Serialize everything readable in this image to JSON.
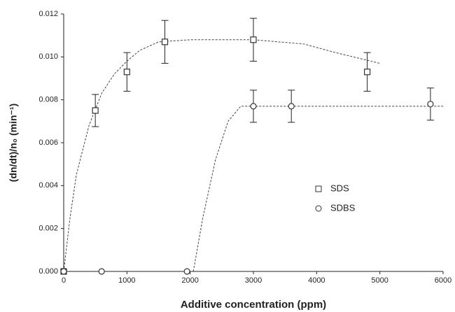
{
  "chart_data": {
    "type": "scatter",
    "xlabel": "Additive concentration (ppm)",
    "ylabel": "(dn/dt)/n₀ (min⁻¹)",
    "xlim": [
      0,
      6000
    ],
    "xticks": [
      0,
      1000,
      2000,
      3000,
      4000,
      5000,
      6000
    ],
    "ylim": [
      0,
      0.012
    ],
    "yticks": [
      {
        "value": 0,
        "label": "0.000"
      },
      {
        "value": 0.002,
        "label": "0.002"
      },
      {
        "value": 0.004,
        "label": "0.004"
      },
      {
        "value": 0.006,
        "label": "0.006"
      },
      {
        "value": 0.008,
        "label": "0.008"
      },
      {
        "value": 0.01,
        "label": "0.010"
      },
      {
        "value": 0.012,
        "label": "0.012"
      }
    ],
    "series": [
      {
        "name": "SDS",
        "marker": "square",
        "color": "#333333",
        "x": [
          0,
          500,
          1000,
          1600,
          3000,
          4800
        ],
        "values": [
          0,
          0.0075,
          0.0093,
          0.0107,
          0.0108,
          0.0093
        ],
        "errors": [
          null,
          0.00075,
          0.0009,
          0.001,
          0.001,
          0.0009
        ],
        "fit_x": [
          0,
          100,
          200,
          400,
          600,
          800,
          1000,
          1200,
          1500,
          2000,
          3000,
          3800,
          4300,
          5000
        ],
        "fit_values": [
          0,
          0.0025,
          0.0045,
          0.0068,
          0.0083,
          0.0092,
          0.0098,
          0.0103,
          0.0107,
          0.0108,
          0.0108,
          0.0106,
          0.0102,
          0.0097
        ]
      },
      {
        "name": "SDBS",
        "marker": "circle",
        "color": "#333333",
        "x": [
          0,
          600,
          1950,
          3000,
          3600,
          5800
        ],
        "values": [
          0,
          0,
          0,
          0.0077,
          0.0077,
          0.0078
        ],
        "errors": [
          null,
          null,
          null,
          0.00075,
          0.00075,
          0.00075
        ],
        "fit_x": [
          2050,
          2200,
          2400,
          2600,
          2800,
          3000,
          6000
        ],
        "fit_values": [
          0,
          0.0025,
          0.0052,
          0.007,
          0.0077,
          0.0077,
          0.0077
        ]
      }
    ]
  }
}
